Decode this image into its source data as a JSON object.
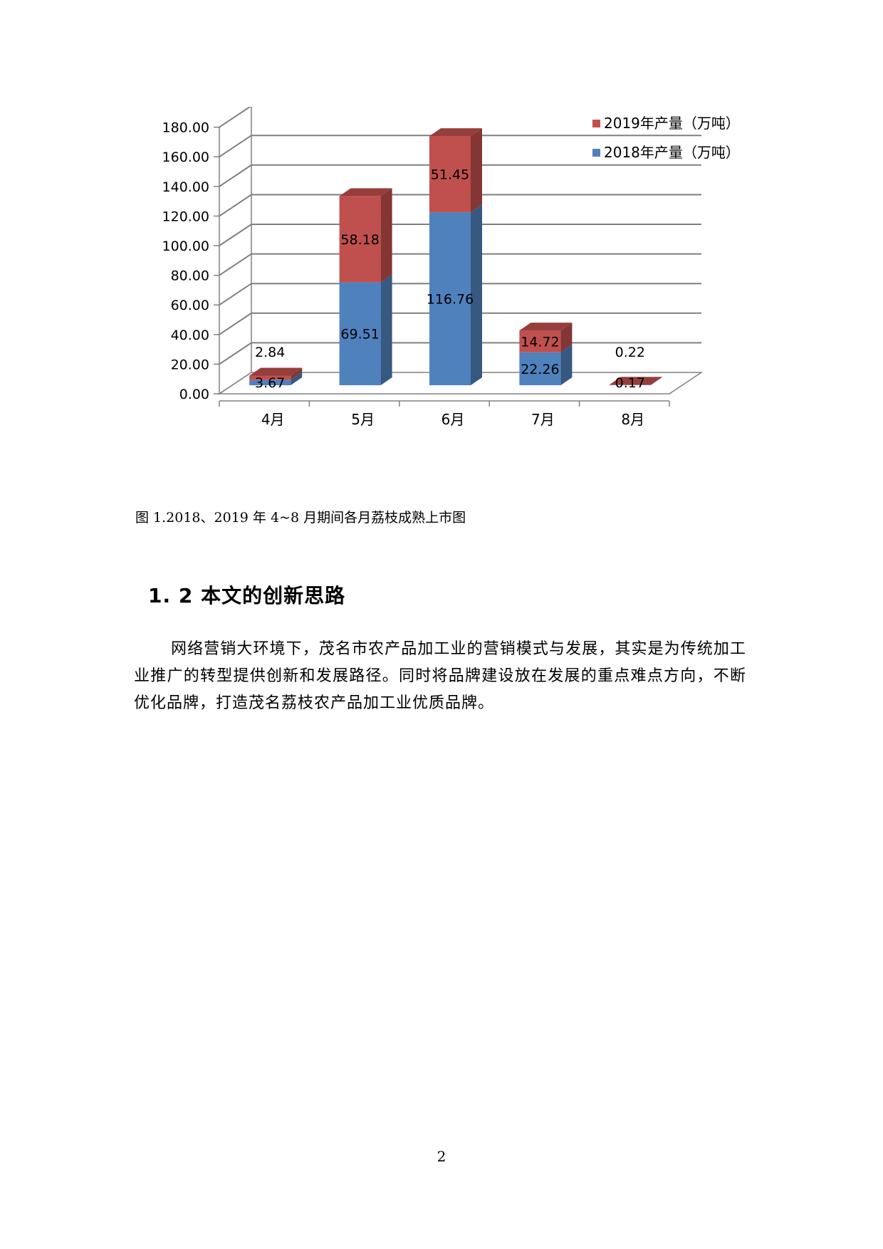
{
  "figure": {
    "caption": "图 1.2018、2019 年 4~8 月期间各月荔枝成熟上市图"
  },
  "chart_data": {
    "type": "bar",
    "stacked": true,
    "three_d": true,
    "title": "",
    "xlabel": "",
    "ylabel": "",
    "ylim": [
      0,
      180
    ],
    "yticks": [
      "0.00",
      "20.00",
      "40.00",
      "60.00",
      "80.00",
      "100.00",
      "120.00",
      "140.00",
      "160.00",
      "180.00"
    ],
    "grid": true,
    "legend_position": "top-right",
    "categories": [
      "4月",
      "5月",
      "6月",
      "7月",
      "8月"
    ],
    "series": [
      {
        "name": "2018年产量（万吨）",
        "color": "#4F81BD",
        "values": [
          3.67,
          69.51,
          116.76,
          22.26,
          0.17
        ],
        "labels": [
          "3.67",
          "69.51",
          "116.76",
          "22.26",
          "0.17"
        ]
      },
      {
        "name": "2019年产量（万吨）",
        "color": "#C0504D",
        "values": [
          2.84,
          58.18,
          51.45,
          14.72,
          0.22
        ],
        "labels": [
          "2.84",
          "58.18",
          "51.45",
          "14.72",
          "0.22"
        ]
      }
    ]
  },
  "section": {
    "heading": "1. 2 本文的创新思路",
    "paragraph": "网络营销大环境下，茂名市农产品加工业的营销模式与发展，其实是为传统加工业推广的转型提供创新和发展路径。同时将品牌建设放在发展的重点难点方向，不断优化品牌，打造茂名荔枝农产品加工业优质品牌。"
  },
  "footer": {
    "page_number": "2"
  }
}
